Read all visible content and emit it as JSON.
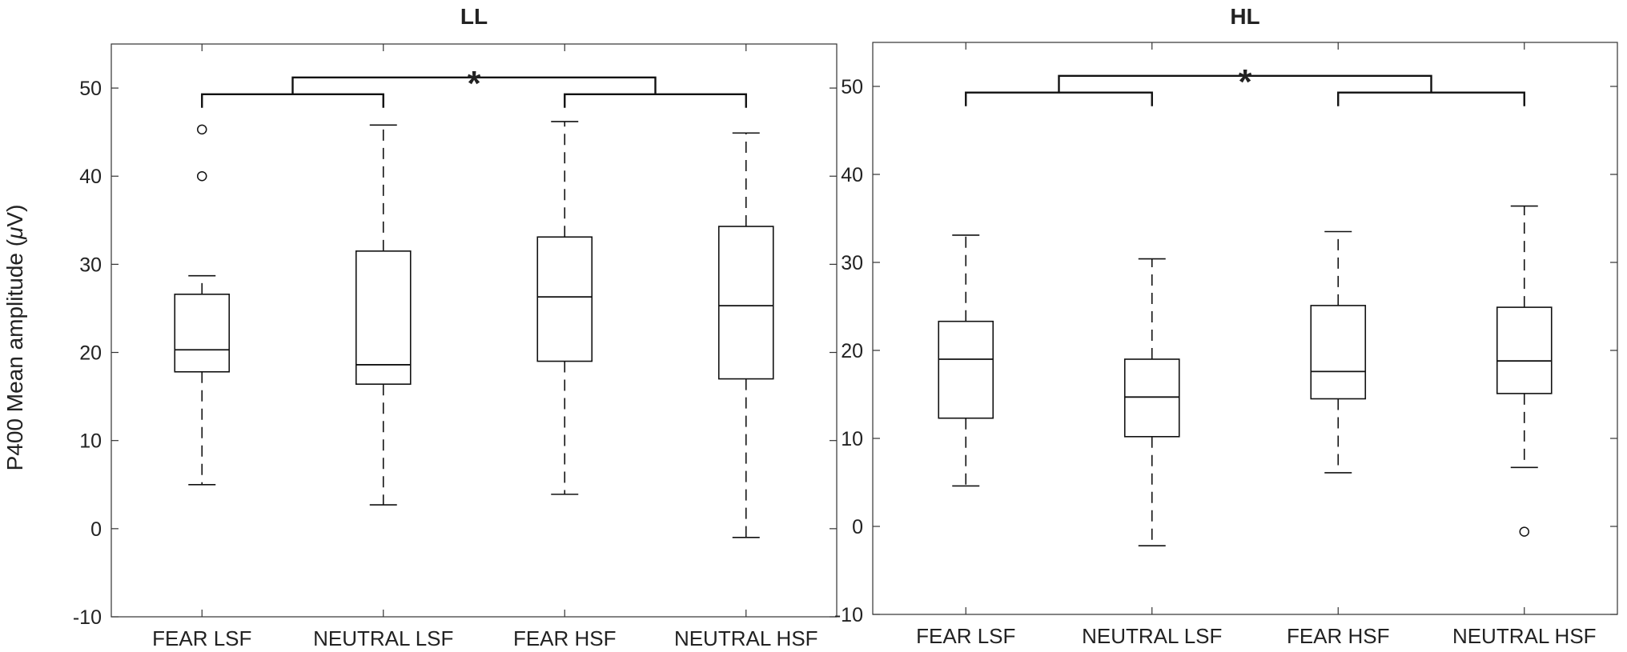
{
  "ylabel_prefix": "P400 Mean amplitude (",
  "ylabel_mu": "μ",
  "ylabel_suffix": "V)",
  "chart_data": [
    {
      "type": "box",
      "title": "LL",
      "categories": [
        "FEAR LSF",
        "NEUTRAL LSF",
        "FEAR HSF",
        "NEUTRAL HSF"
      ],
      "ylim": [
        -10,
        55
      ],
      "yticks": [
        -10,
        0,
        10,
        20,
        30,
        40,
        50
      ],
      "boxes": [
        {
          "whisker_low": 5,
          "q1": 17.8,
          "median": 20.3,
          "q3": 26.6,
          "whisker_high": 28.7,
          "outliers": [
            40,
            45.3
          ]
        },
        {
          "whisker_low": 2.7,
          "q1": 16.4,
          "median": 18.6,
          "q3": 31.5,
          "whisker_high": 45.8,
          "outliers": []
        },
        {
          "whisker_low": 3.9,
          "q1": 19,
          "median": 26.3,
          "q3": 33.1,
          "whisker_high": 46.2,
          "outliers": []
        },
        {
          "whisker_low": -1,
          "q1": 17,
          "median": 25.3,
          "q3": 34.3,
          "whisker_high": 44.9,
          "outliers": []
        }
      ],
      "significance": {
        "symbol": "*",
        "pairs": [
          [
            0,
            1
          ],
          [
            2,
            3
          ]
        ]
      }
    },
    {
      "type": "box",
      "title": "HL",
      "categories": [
        "FEAR LSF",
        "NEUTRAL LSF",
        "FEAR HSF",
        "NEUTRAL HSF"
      ],
      "ylim": [
        -10,
        55
      ],
      "yticks": [
        -10,
        0,
        10,
        20,
        30,
        40,
        50
      ],
      "boxes": [
        {
          "whisker_low": 4.6,
          "q1": 12.3,
          "median": 19,
          "q3": 23.3,
          "whisker_high": 33.1,
          "outliers": []
        },
        {
          "whisker_low": -2.2,
          "q1": 10.2,
          "median": 14.7,
          "q3": 19,
          "whisker_high": 30.4,
          "outliers": []
        },
        {
          "whisker_low": 6.1,
          "q1": 14.5,
          "median": 17.6,
          "q3": 25.1,
          "whisker_high": 33.5,
          "outliers": []
        },
        {
          "whisker_low": 6.7,
          "q1": 15.1,
          "median": 18.8,
          "q3": 24.9,
          "whisker_high": 36.4,
          "outliers": [
            -0.6
          ]
        }
      ],
      "significance": {
        "symbol": "*",
        "pairs": [
          [
            0,
            1
          ],
          [
            2,
            3
          ]
        ]
      }
    }
  ]
}
